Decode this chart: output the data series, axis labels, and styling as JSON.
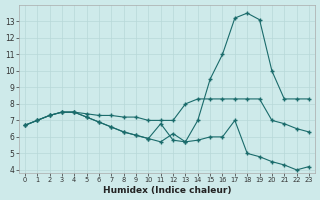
{
  "xlabel": "Humidex (Indice chaleur)",
  "bg_color": "#ceeaea",
  "grid_color": "#b8d8d8",
  "line_color": "#1a6b6b",
  "xlim": [
    -0.5,
    23.5
  ],
  "ylim": [
    3.8,
    14.0
  ],
  "yticks": [
    4,
    5,
    6,
    7,
    8,
    9,
    10,
    11,
    12,
    13
  ],
  "xticks": [
    0,
    1,
    2,
    3,
    4,
    5,
    6,
    7,
    8,
    9,
    10,
    11,
    12,
    13,
    14,
    15,
    16,
    17,
    18,
    19,
    20,
    21,
    22,
    23
  ],
  "series1_x": [
    0,
    1,
    2,
    3,
    4,
    5,
    6,
    7,
    8,
    9,
    10,
    11,
    12,
    13,
    14,
    15,
    16,
    17,
    18,
    19,
    20,
    21,
    22,
    23
  ],
  "series1_y": [
    6.7,
    7.0,
    7.3,
    7.5,
    7.5,
    7.4,
    7.3,
    7.3,
    7.2,
    7.2,
    7.0,
    7.0,
    7.0,
    8.0,
    8.3,
    8.3,
    8.3,
    8.3,
    8.3,
    8.3,
    7.0,
    6.8,
    6.5,
    6.3
  ],
  "series2_x": [
    0,
    1,
    2,
    3,
    4,
    5,
    6,
    7,
    8,
    9,
    10,
    11,
    12,
    13,
    14,
    15,
    16,
    17,
    18,
    19,
    20,
    21,
    22,
    23
  ],
  "series2_y": [
    6.7,
    7.0,
    7.3,
    7.5,
    7.5,
    7.2,
    6.9,
    6.6,
    6.3,
    6.1,
    5.9,
    6.8,
    5.8,
    5.7,
    7.0,
    9.5,
    11.0,
    13.2,
    13.5,
    13.1,
    10.0,
    8.3,
    8.3,
    8.3
  ],
  "series3_x": [
    0,
    1,
    2,
    3,
    4,
    5,
    6,
    7,
    8,
    9,
    10,
    11,
    12,
    13,
    14,
    15,
    16,
    17,
    18,
    19,
    20,
    21,
    22,
    23
  ],
  "series3_y": [
    6.7,
    7.0,
    7.3,
    7.5,
    7.5,
    7.2,
    6.9,
    6.6,
    6.3,
    6.1,
    5.9,
    5.7,
    6.2,
    5.7,
    5.8,
    6.0,
    6.0,
    7.0,
    5.0,
    4.8,
    4.5,
    4.3,
    4.0,
    4.2
  ]
}
